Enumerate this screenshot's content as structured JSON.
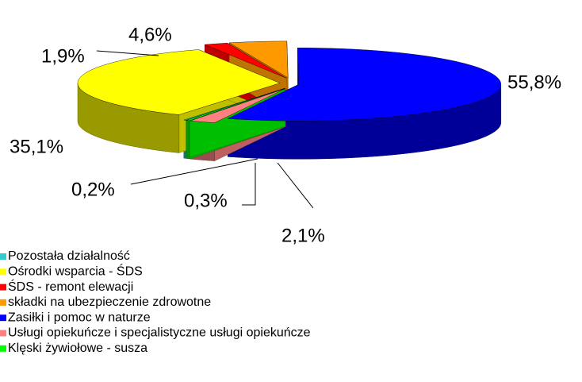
{
  "chart_data": {
    "type": "pie",
    "categories": [
      "Pozostała działalność",
      "Ośrodki wsparcia - ŚDS",
      "ŚDS - remont elewacji",
      "składki na ubezpieczenie zdrowotne",
      "Zasiłki i pomoc w naturze",
      "Usługi opiekuńcze i specjalistyczne usługi opiekuńcze",
      "Klęski żywiołowe - susza"
    ],
    "values": [
      0.2,
      35.1,
      1.9,
      4.6,
      55.8,
      2.1,
      0.3
    ],
    "value_labels": [
      "0,2%",
      "35,1%",
      "1,9%",
      "4,6%",
      "55,8%",
      "2,1%",
      "0,3%"
    ],
    "colors": [
      "#33cccc",
      "#ffff00",
      "#ff0000",
      "#ff9900",
      "#0000ff",
      "#ff8080",
      "#00ff00"
    ],
    "legend": "bottom-left"
  }
}
